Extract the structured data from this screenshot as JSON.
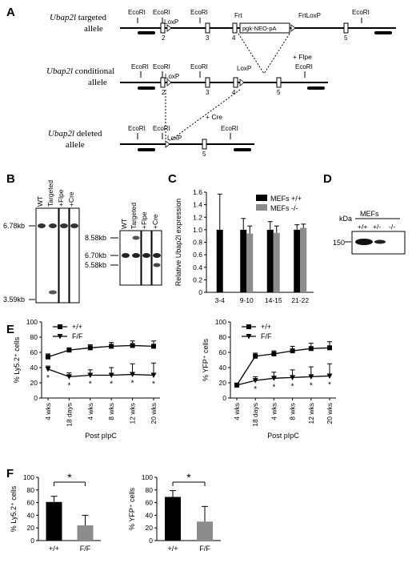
{
  "panels": {
    "A": {
      "letter": "A",
      "targeted_label": [
        "Ubap2l",
        " targeted",
        "allele"
      ],
      "conditional_label": [
        "Ubap2l",
        " conditional",
        "allele"
      ],
      "deleted_label": [
        "Ubap2l",
        " deleted",
        "allele"
      ],
      "ecori": "EcoRI",
      "loxp": "LoxP",
      "frt": "Frt",
      "frtloxp": "FrtLoxP",
      "cassette": "pgk-NEO-pA",
      "flpe": "+ Flpe",
      "cre": "+ Cre",
      "exons_targeted": [
        "2",
        "3",
        "4",
        "5"
      ],
      "exons_conditional": [
        "2",
        "3",
        "4",
        "5"
      ],
      "exons_deleted": [
        "5"
      ]
    },
    "B": {
      "letter": "B",
      "left_blot": {
        "lanes": [
          "WT",
          "Targeted",
          "+Flpe",
          "+Cre"
        ],
        "markers": [
          "6.78kb",
          "3.59kb"
        ]
      },
      "right_blot": {
        "lanes": [
          "WT",
          "Targeted",
          "+Flpe",
          "+Cre"
        ],
        "markers": [
          "8.58kb",
          "6.70kb",
          "5.58kb"
        ]
      }
    },
    "D": {
      "letter": "D",
      "kda": "kDa",
      "group": "MEFs",
      "lanes": [
        "+/+",
        "+/-",
        "-/-"
      ],
      "marker": "150"
    }
  },
  "chart_data": [
    {
      "id": "C",
      "letter": "C",
      "type": "bar",
      "categories": [
        "3-4",
        "9-10",
        "14-15",
        "21-22"
      ],
      "series": [
        {
          "name": "MEFs +/+",
          "color": "#000000",
          "values": [
            1.0,
            1.0,
            1.0,
            1.0
          ],
          "errors": [
            0.57,
            0.18,
            0.13,
            0.08
          ]
        },
        {
          "name": "MEFs -/-",
          "color": "#8c8c8c",
          "values": [
            null,
            0.94,
            0.95,
            1.03
          ],
          "errors": [
            null,
            0.12,
            0.11,
            0.06
          ]
        }
      ],
      "ylabel": "Relative Ubap2l expression",
      "ylim": [
        0,
        1.6
      ],
      "yticks": [
        "0",
        "0.2",
        "0.4",
        "0.6",
        "0.8",
        "1.0",
        "1.2",
        "1.4",
        "1.6"
      ],
      "legend": "top-right"
    },
    {
      "id": "E1",
      "letter": "E",
      "type": "line",
      "categories": [
        "4 wks",
        "18 days",
        "4 wks",
        "8 wks",
        "12 wks",
        "20 wks"
      ],
      "xlabel": "Post pIpC",
      "ylabel": "% Ly5.2⁺ cells",
      "ylim": [
        0,
        100
      ],
      "yticks": [
        "0",
        "20",
        "40",
        "60",
        "80",
        "100"
      ],
      "legend": "top-left",
      "series": [
        {
          "name": "+/+",
          "marker": "square",
          "values": [
            54,
            63,
            66,
            68,
            69,
            68
          ],
          "errors": [
            4,
            3,
            4,
            5,
            6,
            7
          ]
        },
        {
          "name": "F/F",
          "marker": "triangle-down",
          "values": [
            38,
            28,
            30,
            30,
            31,
            30
          ],
          "errors": [
            4,
            5,
            7,
            10,
            14,
            16
          ]
        }
      ],
      "significance": [
        "*",
        "*",
        "*",
        "*",
        "*",
        "*"
      ]
    },
    {
      "id": "E2",
      "type": "line",
      "categories": [
        "4 wks",
        "18 days",
        "4 wks",
        "8 wks",
        "12 wks",
        "20 wks"
      ],
      "xlabel": "Post pIpC",
      "ylabel": "% YFP⁺ cells",
      "ylim": [
        0,
        100
      ],
      "yticks": [
        "0",
        "20",
        "40",
        "60",
        "80",
        "100"
      ],
      "legend": "top-left",
      "series": [
        {
          "name": "+/+",
          "marker": "square",
          "values": [
            17,
            55,
            58,
            62,
            65,
            66
          ],
          "errors": [
            2,
            4,
            4,
            6,
            7,
            8
          ]
        },
        {
          "name": "F/F",
          "marker": "triangle-down",
          "values": [
            17,
            23,
            26,
            27,
            28,
            29
          ],
          "errors": [
            2,
            5,
            8,
            10,
            13,
            16
          ]
        }
      ],
      "significance": [
        "",
        "*",
        "*",
        "*",
        "*",
        "*"
      ]
    },
    {
      "id": "F1",
      "letter": "F",
      "type": "bar",
      "categories": [
        "+/+",
        "F/F"
      ],
      "colors": [
        "#000000",
        "#8c8c8c"
      ],
      "values": [
        61,
        24
      ],
      "errors": [
        9,
        16
      ],
      "ylabel": "% Ly5.2⁺ cells",
      "ylim": [
        0,
        100
      ],
      "yticks": [
        "0",
        "20",
        "40",
        "60",
        "80",
        "100"
      ],
      "significance": "*"
    },
    {
      "id": "F2",
      "type": "bar",
      "categories": [
        "+/+",
        "F/F"
      ],
      "colors": [
        "#000000",
        "#8c8c8c"
      ],
      "values": [
        69,
        30
      ],
      "errors": [
        10,
        24
      ],
      "ylabel": "% YFP⁺ cells",
      "ylim": [
        0,
        100
      ],
      "yticks": [
        "0",
        "20",
        "40",
        "60",
        "80",
        "100"
      ],
      "significance": "*"
    }
  ]
}
